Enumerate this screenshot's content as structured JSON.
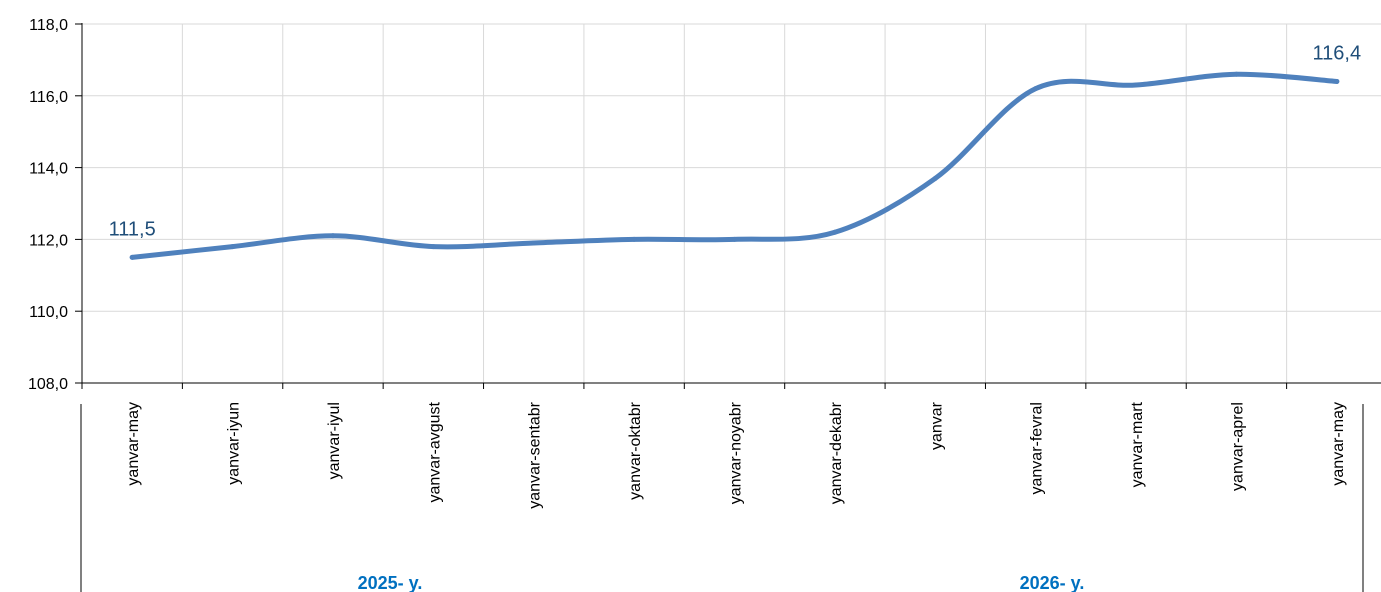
{
  "chart_data": {
    "type": "line",
    "title": "",
    "xlabel": "",
    "ylabel": "",
    "categories": [
      "yanvar-may",
      "yanvar-iyun",
      "yanvar-iyul",
      "yanvar-avgust",
      "yanvar-sentabr",
      "yanvar-oktabr",
      "yanvar-noyabr",
      "yanvar-dekabr",
      "yanvar",
      "yanvar-fevral",
      "yanvar-mart",
      "yanvar-aprel",
      "yanvar-may"
    ],
    "series": [
      {
        "values": [
          111.5,
          111.8,
          112.1,
          111.8,
          111.9,
          112.0,
          112.0,
          112.2,
          113.7,
          116.2,
          116.3,
          116.6,
          116.4
        ],
        "color": "#4f81bd"
      }
    ],
    "ylim": [
      108.0,
      118.0
    ],
    "yticks": [
      "108,0",
      "110,0",
      "112,0",
      "114,0",
      "116,0",
      "118,0"
    ],
    "grid": true,
    "legend": "none",
    "data_labels": [
      {
        "index": 0,
        "text": "111,5"
      },
      {
        "index": 12,
        "text": "116,4"
      }
    ],
    "groups": [
      {
        "label": "2025- y.",
        "start": 0,
        "end": 7
      },
      {
        "label": "2026- y.",
        "start": 8,
        "end": 12
      }
    ],
    "colors": {
      "line": "#4f81bd",
      "grid": "#d9d9d9",
      "label": "#1f4e79",
      "group_label": "#0070c0"
    }
  }
}
